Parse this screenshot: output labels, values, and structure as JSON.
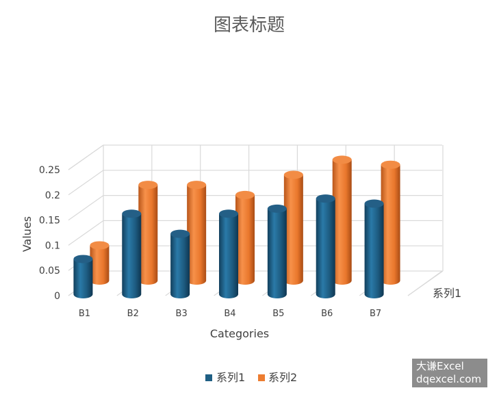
{
  "chart_data": {
    "type": "bar",
    "title": "图表标题",
    "xlabel": "Categories",
    "ylabel": "Values",
    "depth_axis_label": "系列1",
    "categories": [
      "B1",
      "B2",
      "B3",
      "B4",
      "B5",
      "B6",
      "B7"
    ],
    "ylim": [
      0,
      0.25
    ],
    "yticks": [
      "0",
      "0.05",
      "0.1",
      "0.15",
      "0.2",
      "0.25"
    ],
    "series": [
      {
        "name": "系列1",
        "values": [
          0.07,
          0.16,
          0.12,
          0.16,
          0.17,
          0.19,
          0.18
        ],
        "color": "#1f5f84"
      },
      {
        "name": "系列2",
        "values": [
          0.07,
          0.19,
          0.19,
          0.17,
          0.21,
          0.24,
          0.23
        ],
        "color": "#ed7d31"
      }
    ],
    "legend_position": "bottom",
    "grid": true
  },
  "watermark": {
    "line1": "大谦Excel",
    "line2": "dqexcel.com"
  }
}
